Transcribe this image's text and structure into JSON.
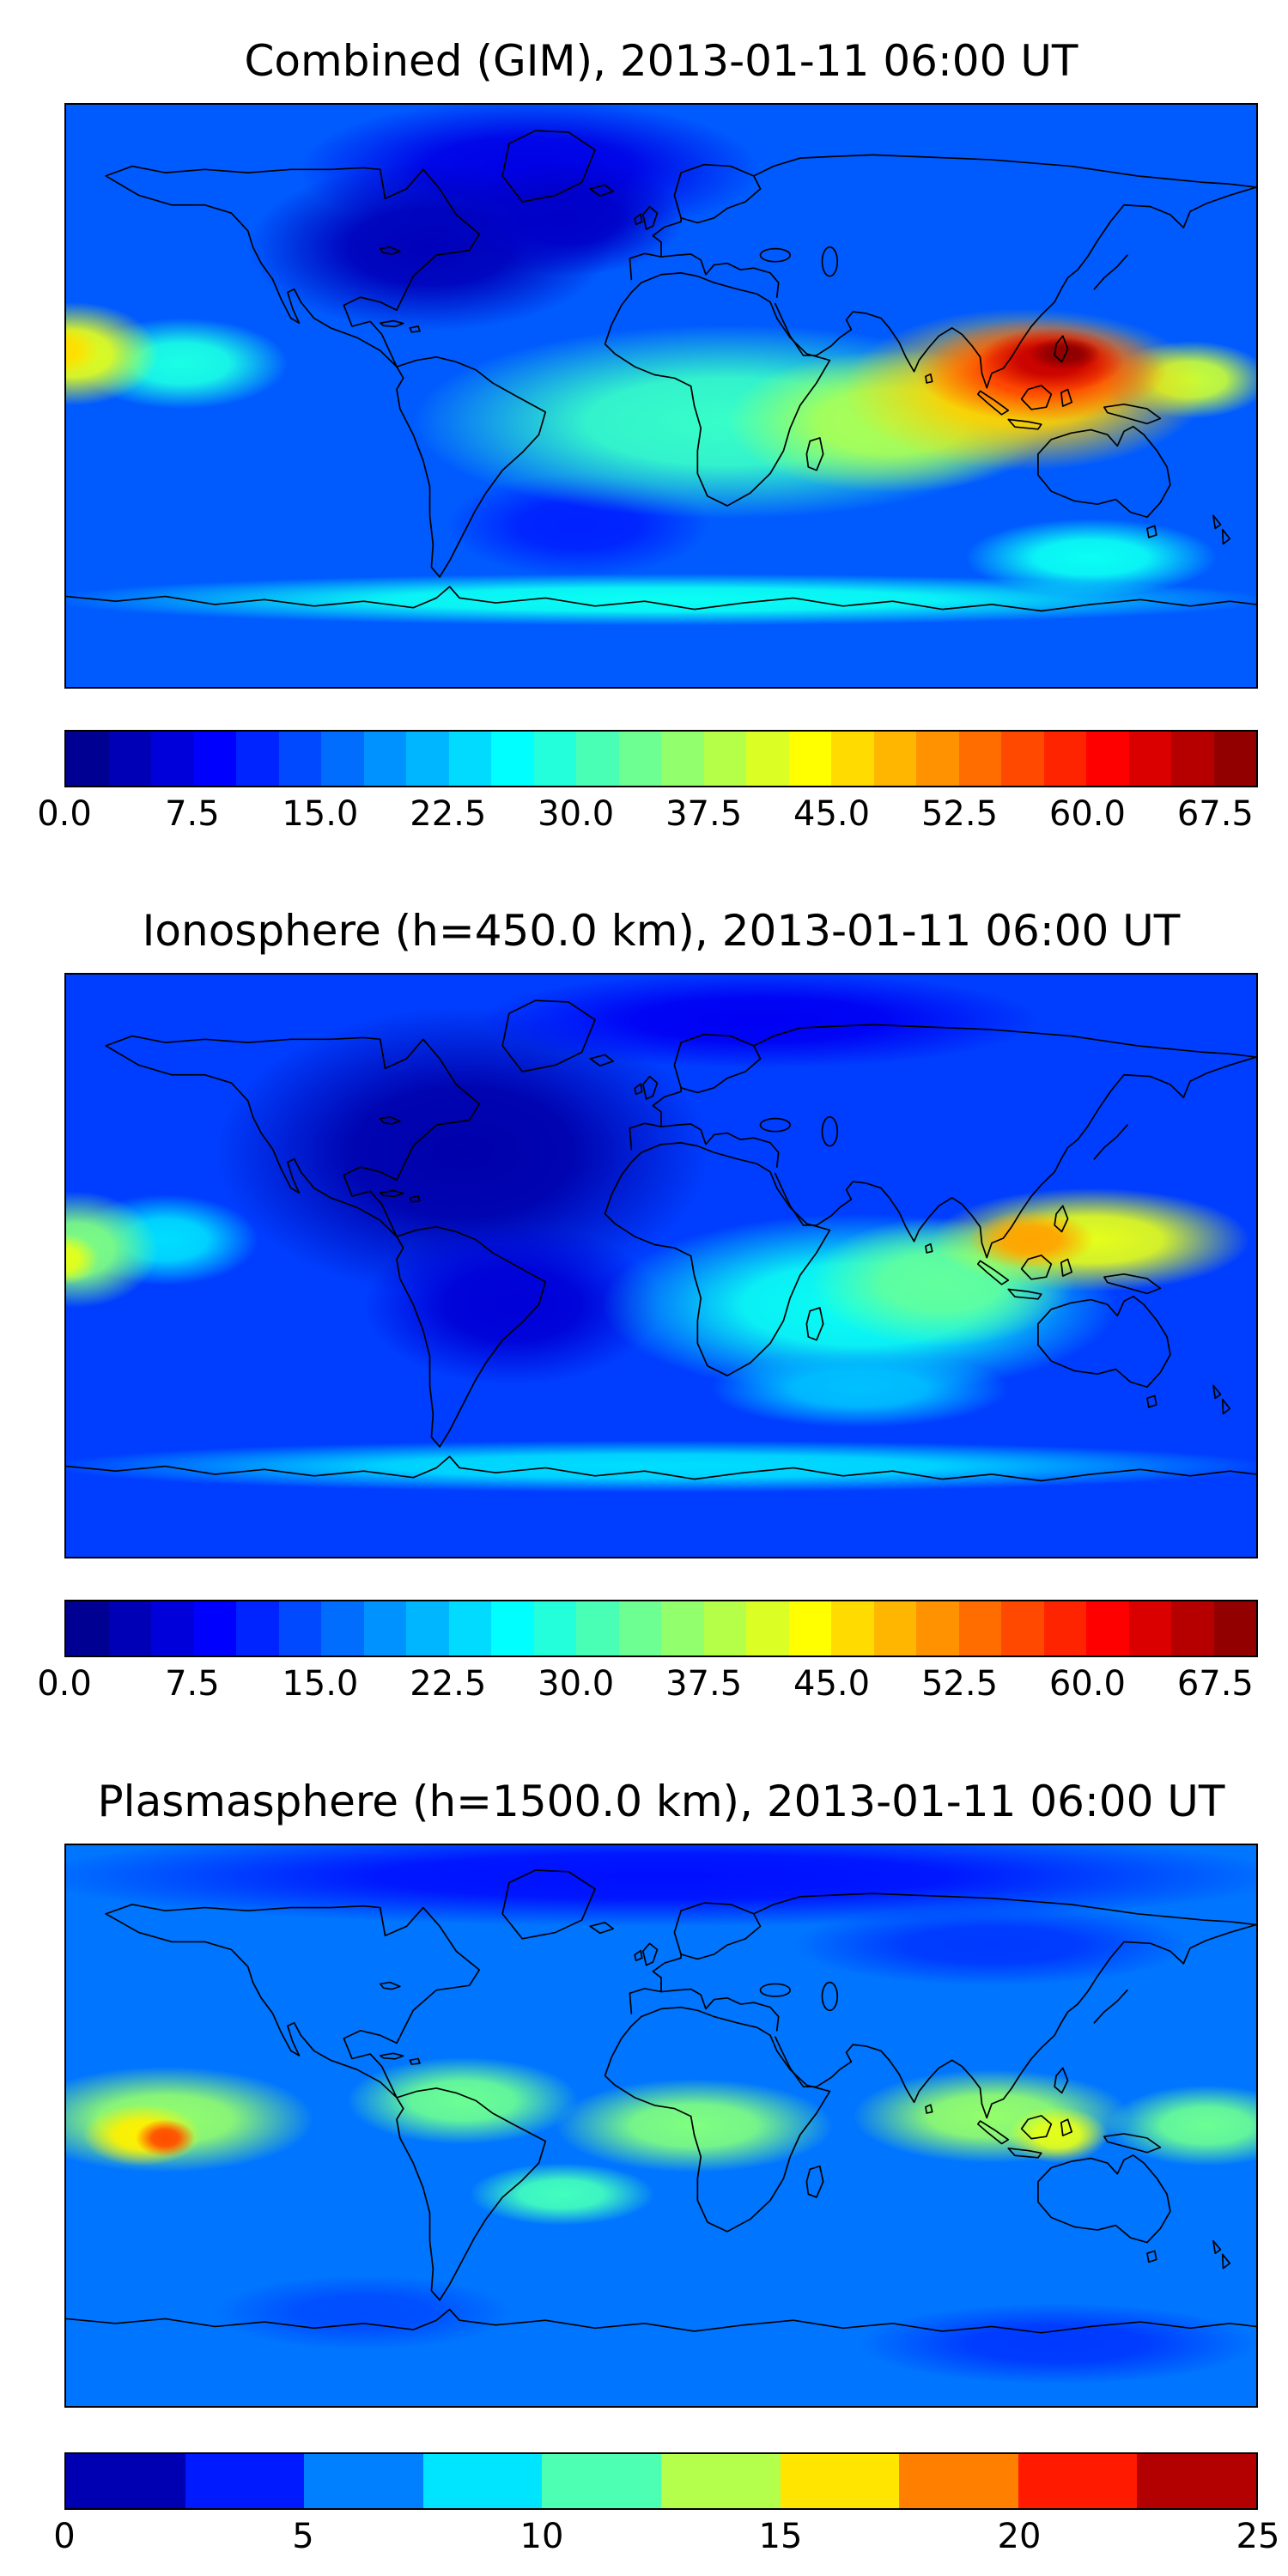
{
  "chart_data": [
    {
      "type": "heatmap",
      "title": "Combined (GIM), 2013-01-11 06:00 UT",
      "projection": "equirectangular",
      "lon_range": [
        -180,
        180
      ],
      "lat_range": [
        -90,
        90
      ],
      "colormap": "jet",
      "vmin": 0,
      "vmax": 70,
      "level_step": 2.5,
      "colorbar_ticks": [
        0,
        7.5,
        15,
        22.5,
        30,
        37.5,
        45,
        52.5,
        60,
        67.5
      ],
      "colorbar_tick_labels": [
        "0.0",
        "7.5",
        "15.0",
        "22.5",
        "30.0",
        "37.5",
        "45.0",
        "52.5",
        "60.0",
        "67.5"
      ],
      "base_value": 15,
      "features": [
        {
          "name": "arctic-low",
          "lon": -40,
          "lat": 70,
          "rx": 70,
          "ry": 22,
          "value": 7
        },
        {
          "name": "north-america-minimum",
          "lon": -70,
          "lat": 46,
          "rx": 55,
          "ry": 26,
          "value": 4
        },
        {
          "name": "north-atlantic-minimum",
          "lon": -28,
          "lat": 55,
          "rx": 35,
          "ry": 18,
          "value": 5
        },
        {
          "name": "south-atlantic-low",
          "lon": -25,
          "lat": -40,
          "rx": 40,
          "ry": 16,
          "value": 11
        },
        {
          "name": "equatorial-band",
          "lon": 20,
          "lat": -8,
          "rx": 95,
          "ry": 30,
          "value": 30
        },
        {
          "name": "indian-ocean-enhancement",
          "lon": 70,
          "lat": -8,
          "rx": 50,
          "ry": 22,
          "value": 38
        },
        {
          "name": "antarctic-band",
          "lon": 0,
          "lat": -63,
          "rx": 185,
          "ry": 8,
          "value": 27
        },
        {
          "name": "south-of-australia-patch",
          "lon": 130,
          "lat": -50,
          "rx": 38,
          "ry": 12,
          "value": 27
        },
        {
          "name": "central-pacific-band",
          "lon": -145,
          "lat": 10,
          "rx": 32,
          "ry": 14,
          "value": 28
        },
        {
          "name": "west-pacific-yellow",
          "lon": 160,
          "lat": 5,
          "rx": 24,
          "ry": 12,
          "value": 40
        },
        {
          "name": "se-asia-enhancement",
          "lon": 110,
          "lat": 2,
          "rx": 55,
          "ry": 25,
          "value": 47
        },
        {
          "name": "anomaly-orange",
          "lon": 115,
          "lat": 8,
          "rx": 38,
          "ry": 16,
          "value": 57
        },
        {
          "name": "anomaly-red",
          "lon": 118,
          "lat": 11,
          "rx": 22,
          "ry": 10,
          "value": 65
        },
        {
          "name": "anomaly-core",
          "lon": 122,
          "lat": 13,
          "rx": 11,
          "ry": 5,
          "value": 69
        },
        {
          "name": "pacific-left-edge-green",
          "lon": -178,
          "lat": 13,
          "rx": 26,
          "ry": 16,
          "value": 42
        },
        {
          "name": "pacific-left-edge-core",
          "lon": -182,
          "lat": 14,
          "rx": 12,
          "ry": 8,
          "value": 46
        }
      ]
    },
    {
      "type": "heatmap",
      "title": "Ionosphere  (h=450.0 km), 2013-01-11 06:00 UT",
      "projection": "equirectangular",
      "lon_range": [
        -180,
        180
      ],
      "lat_range": [
        -90,
        90
      ],
      "colormap": "jet",
      "vmin": 0,
      "vmax": 70,
      "level_step": 2.5,
      "colorbar_ticks": [
        0,
        7.5,
        15,
        22.5,
        30,
        37.5,
        45,
        52.5,
        60,
        67.5
      ],
      "colorbar_tick_labels": [
        "0.0",
        "7.5",
        "15.0",
        "22.5",
        "30.0",
        "37.5",
        "45.0",
        "52.5",
        "60.0",
        "67.5"
      ],
      "base_value": 13,
      "features": [
        {
          "name": "americas-minimum",
          "lon": -60,
          "lat": 35,
          "rx": 75,
          "ry": 45,
          "value": 3
        },
        {
          "name": "south-american-low",
          "lon": -45,
          "lat": -12,
          "rx": 45,
          "ry": 25,
          "value": 6
        },
        {
          "name": "arctic-low",
          "lon": 30,
          "lat": 76,
          "rx": 85,
          "ry": 15,
          "value": 8
        },
        {
          "name": "equatorial-band",
          "lon": 60,
          "lat": -12,
          "rx": 78,
          "ry": 28,
          "value": 27
        },
        {
          "name": "antarctic-band",
          "lon": 0,
          "lat": -62,
          "rx": 185,
          "ry": 8,
          "value": 24
        },
        {
          "name": "south-indian-patch",
          "lon": 60,
          "lat": -38,
          "rx": 45,
          "ry": 12,
          "value": 22
        },
        {
          "name": "indian-ocean-enhancement",
          "lon": 85,
          "lat": -5,
          "rx": 40,
          "ry": 20,
          "value": 33
        },
        {
          "name": "central-pacific-band",
          "lon": -150,
          "lat": 8,
          "rx": 28,
          "ry": 14,
          "value": 24
        },
        {
          "name": "se-asia-enhancement",
          "lon": 130,
          "lat": 8,
          "rx": 48,
          "ry": 16,
          "value": 42
        },
        {
          "name": "anomaly-orange",
          "lon": 112,
          "lat": 8,
          "rx": 19,
          "ry": 9,
          "value": 50
        },
        {
          "name": "pacific-left-edge-green",
          "lon": -177,
          "lat": 5,
          "rx": 25,
          "ry": 18,
          "value": 35
        },
        {
          "name": "pacific-left-edge-core",
          "lon": -181,
          "lat": 2,
          "rx": 11,
          "ry": 8,
          "value": 42
        }
      ]
    },
    {
      "type": "heatmap",
      "title": "Plasmasphere (h=1500.0 km), 2013-01-11 06:00 UT",
      "projection": "equirectangular",
      "lon_range": [
        -180,
        180
      ],
      "lat_range": [
        -90,
        90
      ],
      "colormap": "jet",
      "vmin": 0,
      "vmax": 25,
      "level_step": 2.5,
      "colorbar_ticks": [
        0,
        5,
        10,
        15,
        20,
        25
      ],
      "colorbar_tick_labels": [
        "0",
        "5",
        "10",
        "15",
        "20",
        "25"
      ],
      "base_value": 6,
      "features": [
        {
          "name": "north-polar-low",
          "lon": 0,
          "lat": 80,
          "rx": 190,
          "ry": 16,
          "value": 3.5
        },
        {
          "name": "asia-high-lat-low",
          "lon": 100,
          "lat": 58,
          "rx": 60,
          "ry": 13,
          "value": 4.5
        },
        {
          "name": "south-polar-low",
          "lon": 120,
          "lat": -70,
          "rx": 60,
          "ry": 13,
          "value": 4.5
        },
        {
          "name": "south-pacific-low",
          "lon": -90,
          "lat": -60,
          "rx": 45,
          "ry": 12,
          "value": 5
        },
        {
          "name": "equatorial-band-1",
          "lon": -150,
          "lat": 2,
          "rx": 45,
          "ry": 17,
          "value": 13
        },
        {
          "name": "equatorial-band-2",
          "lon": -60,
          "lat": 8,
          "rx": 35,
          "ry": 14,
          "value": 12
        },
        {
          "name": "equatorial-band-3",
          "lon": 10,
          "lat": 0,
          "rx": 42,
          "ry": 15,
          "value": 12.5
        },
        {
          "name": "equatorial-band-4",
          "lon": 100,
          "lat": 3,
          "rx": 42,
          "ry": 15,
          "value": 13
        },
        {
          "name": "equatorial-band-5",
          "lon": 165,
          "lat": 0,
          "rx": 30,
          "ry": 13,
          "value": 12
        },
        {
          "name": "south-band-wiggle",
          "lon": -30,
          "lat": -22,
          "rx": 28,
          "ry": 10,
          "value": 11
        },
        {
          "name": "green-patch-pacific",
          "lon": -157,
          "lat": -3,
          "rx": 18,
          "ry": 10,
          "value": 16
        },
        {
          "name": "green-patch-indonesia",
          "lon": 120,
          "lat": -3,
          "rx": 15,
          "ry": 9,
          "value": 15
        },
        {
          "name": "max-pacific",
          "lon": -150,
          "lat": -4,
          "rx": 9,
          "ry": 6,
          "value": 20
        }
      ]
    }
  ]
}
